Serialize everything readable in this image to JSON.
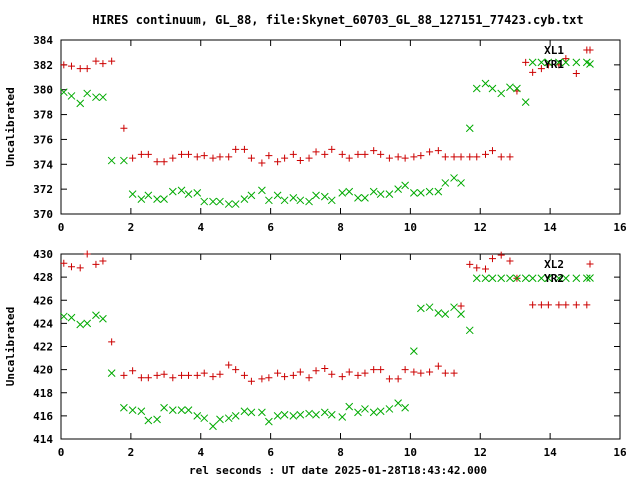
{
  "chart_data": {
    "title": "HIRES continuum, GL_88, file:Skynet_60703_GL_88_127151_77423.cyb.txt",
    "xlabel": "rel seconds : UT date 2025-01-28T18:43:42.000",
    "panels": [
      {
        "type": "scatter",
        "ylabel": "Uncalibrated",
        "xlim": [
          0,
          16
        ],
        "ylim": [
          370,
          384
        ],
        "xticks": [
          0,
          2,
          4,
          6,
          8,
          10,
          12,
          14,
          16
        ],
        "yticks": [
          370,
          372,
          374,
          376,
          378,
          380,
          382,
          384
        ],
        "series": [
          {
            "name": "XL1",
            "color": "#cc0000",
            "marker": "plus",
            "x": [
              0.08,
              0.3,
              0.55,
              0.75,
              1.0,
              1.2,
              1.45,
              1.8,
              2.05,
              2.3,
              2.5,
              2.75,
              2.95,
              3.2,
              3.45,
              3.65,
              3.9,
              4.1,
              4.35,
              4.55,
              4.8,
              5.0,
              5.25,
              5.45,
              5.75,
              5.95,
              6.2,
              6.4,
              6.65,
              6.85,
              7.1,
              7.3,
              7.55,
              7.75,
              8.05,
              8.25,
              8.5,
              8.7,
              8.95,
              9.15,
              9.4,
              9.65,
              9.85,
              10.1,
              10.3,
              10.55,
              10.8,
              11.0,
              11.25,
              11.45,
              11.7,
              11.9,
              12.15,
              12.35,
              12.6,
              12.85,
              13.05,
              13.3,
              13.5,
              13.75,
              13.95,
              14.25,
              14.45,
              14.75,
              15.05
            ],
            "y": [
              382.0,
              381.9,
              381.7,
              381.7,
              382.3,
              382.1,
              382.3,
              376.9,
              374.5,
              374.8,
              374.8,
              374.2,
              374.2,
              374.5,
              374.8,
              374.8,
              374.6,
              374.7,
              374.5,
              374.6,
              374.6,
              375.2,
              375.2,
              374.5,
              374.1,
              374.7,
              374.2,
              374.5,
              374.8,
              374.3,
              374.5,
              375.0,
              374.8,
              375.2,
              374.8,
              374.5,
              374.8,
              374.8,
              375.1,
              374.8,
              374.5,
              374.6,
              374.5,
              374.6,
              374.7,
              375.0,
              375.1,
              374.6,
              374.6,
              374.6,
              374.6,
              374.6,
              374.8,
              375.1,
              374.6,
              374.6,
              379.9,
              382.2,
              381.4,
              381.7,
              382.0,
              382.0,
              382.5,
              381.3,
              383.2
            ]
          },
          {
            "name": "YR1",
            "color": "#00aa00",
            "marker": "x",
            "x": [
              0.08,
              0.3,
              0.55,
              0.75,
              1.0,
              1.2,
              1.45,
              1.8,
              2.05,
              2.3,
              2.5,
              2.75,
              2.95,
              3.2,
              3.45,
              3.65,
              3.9,
              4.1,
              4.35,
              4.55,
              4.8,
              5.0,
              5.25,
              5.45,
              5.75,
              5.95,
              6.2,
              6.4,
              6.65,
              6.85,
              7.1,
              7.3,
              7.55,
              7.75,
              8.05,
              8.25,
              8.5,
              8.7,
              8.95,
              9.15,
              9.4,
              9.65,
              9.85,
              10.1,
              10.3,
              10.55,
              10.8,
              11.0,
              11.25,
              11.45,
              11.7,
              11.9,
              12.15,
              12.35,
              12.6,
              12.85,
              13.05,
              13.3,
              13.5,
              13.75,
              13.95,
              14.25,
              14.45,
              14.75,
              15.05
            ],
            "y": [
              379.8,
              379.5,
              378.9,
              379.7,
              379.4,
              379.4,
              374.3,
              374.3,
              371.6,
              371.2,
              371.5,
              371.2,
              371.2,
              371.8,
              371.9,
              371.6,
              371.7,
              371.0,
              371.0,
              371.0,
              370.8,
              370.8,
              371.2,
              371.5,
              371.9,
              371.1,
              371.5,
              371.1,
              371.3,
              371.1,
              371.0,
              371.5,
              371.4,
              371.1,
              371.7,
              371.8,
              371.3,
              371.3,
              371.8,
              371.6,
              371.6,
              372.0,
              372.3,
              371.7,
              371.7,
              371.8,
              371.8,
              372.5,
              372.9,
              372.5,
              376.9,
              380.1,
              380.5,
              380.1,
              379.7,
              380.2,
              380.1,
              379.0,
              382.2,
              382.2,
              382.2,
              382.2,
              382.2,
              382.2,
              382.2
            ]
          }
        ]
      },
      {
        "type": "scatter",
        "ylabel": "Uncalibrated",
        "xlim": [
          0,
          16
        ],
        "ylim": [
          414,
          430
        ],
        "xticks": [
          0,
          2,
          4,
          6,
          8,
          10,
          12,
          14,
          16
        ],
        "yticks": [
          414,
          416,
          418,
          420,
          422,
          424,
          426,
          428,
          430
        ],
        "series": [
          {
            "name": "XL2",
            "color": "#cc0000",
            "marker": "plus",
            "x": [
              0.08,
              0.3,
              0.55,
              0.75,
              1.0,
              1.2,
              1.45,
              1.8,
              2.05,
              2.3,
              2.5,
              2.75,
              2.95,
              3.2,
              3.45,
              3.65,
              3.9,
              4.1,
              4.35,
              4.55,
              4.8,
              5.0,
              5.25,
              5.45,
              5.75,
              5.95,
              6.2,
              6.4,
              6.65,
              6.85,
              7.1,
              7.3,
              7.55,
              7.75,
              8.05,
              8.25,
              8.5,
              8.7,
              8.95,
              9.15,
              9.4,
              9.65,
              9.85,
              10.1,
              10.3,
              10.55,
              10.8,
              11.0,
              11.25,
              11.45,
              11.7,
              11.9,
              12.15,
              12.35,
              12.6,
              12.85,
              13.05,
              13.3,
              13.5,
              13.75,
              13.95,
              14.25,
              14.45,
              14.75,
              15.05
            ],
            "y": [
              429.2,
              428.9,
              428.8,
              430.0,
              429.1,
              429.4,
              422.4,
              419.5,
              419.9,
              419.3,
              419.3,
              419.5,
              419.6,
              419.3,
              419.5,
              419.5,
              419.5,
              419.7,
              419.4,
              419.6,
              420.4,
              420.0,
              419.5,
              419.0,
              419.2,
              419.3,
              419.7,
              419.4,
              419.5,
              419.8,
              419.3,
              419.9,
              420.1,
              419.6,
              419.4,
              419.8,
              419.5,
              419.7,
              420.0,
              420.0,
              419.2,
              419.2,
              420.0,
              419.8,
              419.7,
              419.8,
              420.3,
              419.7,
              419.7,
              425.5,
              429.1,
              428.8,
              428.7,
              429.6,
              429.9,
              429.4,
              427.9,
              430.1,
              425.6,
              425.6,
              425.6,
              425.6,
              425.6,
              425.6,
              425.6
            ]
          },
          {
            "name": "YR2",
            "color": "#00aa00",
            "marker": "x",
            "x": [
              0.08,
              0.3,
              0.55,
              0.75,
              1.0,
              1.2,
              1.45,
              1.8,
              2.05,
              2.3,
              2.5,
              2.75,
              2.95,
              3.2,
              3.45,
              3.65,
              3.9,
              4.1,
              4.35,
              4.55,
              4.8,
              5.0,
              5.25,
              5.45,
              5.75,
              5.95,
              6.2,
              6.4,
              6.65,
              6.85,
              7.1,
              7.3,
              7.55,
              7.75,
              8.05,
              8.25,
              8.5,
              8.7,
              8.95,
              9.15,
              9.4,
              9.65,
              9.85,
              10.1,
              10.3,
              10.55,
              10.8,
              11.0,
              11.25,
              11.45,
              11.7,
              11.9,
              12.15,
              12.35,
              12.6,
              12.85,
              13.05,
              13.3,
              13.5,
              13.75,
              13.95,
              14.25,
              14.45,
              14.75,
              15.05
            ],
            "y": [
              424.6,
              424.5,
              423.9,
              424.0,
              424.7,
              424.4,
              419.7,
              416.7,
              416.5,
              416.4,
              415.6,
              415.7,
              416.7,
              416.5,
              416.5,
              416.5,
              416.0,
              415.8,
              415.1,
              415.7,
              415.8,
              416.0,
              416.4,
              416.3,
              416.3,
              415.5,
              416.0,
              416.1,
              416.0,
              416.1,
              416.2,
              416.1,
              416.3,
              416.1,
              415.9,
              416.8,
              416.3,
              416.6,
              416.3,
              416.4,
              416.6,
              417.1,
              416.7,
              421.6,
              425.3,
              425.4,
              424.9,
              424.8,
              425.4,
              424.8,
              423.4,
              427.9,
              427.9,
              427.9,
              427.9,
              427.9,
              427.9,
              427.9,
              427.9,
              427.9,
              427.9,
              427.9,
              427.9,
              427.9,
              427.9
            ]
          }
        ]
      }
    ]
  }
}
